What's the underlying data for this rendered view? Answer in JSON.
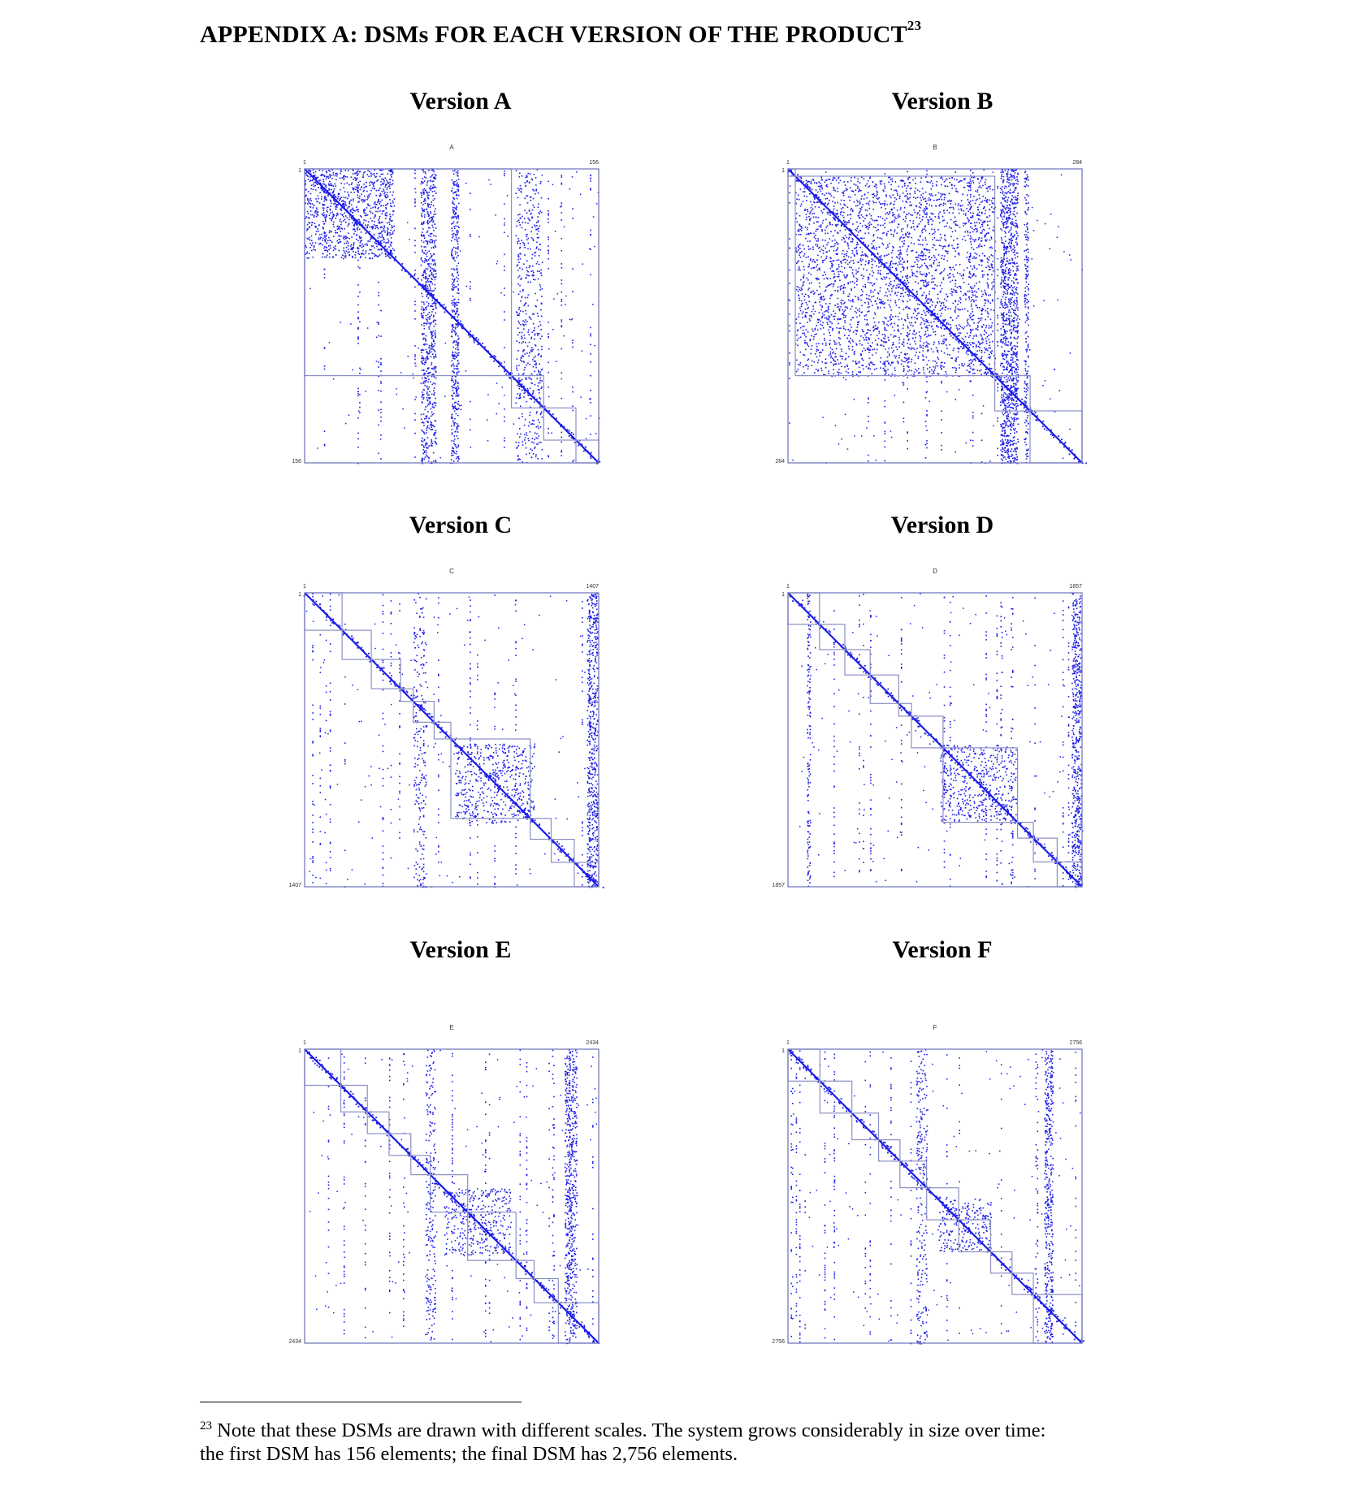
{
  "heading": {
    "text": "APPENDIX A:  DSMs FOR EACH VERSION OF THE PRODUCT",
    "footnote_ref": "23"
  },
  "panels": [
    {
      "title": "Version A",
      "letter": "A",
      "size": 156,
      "size_label": "156",
      "modules": [
        [
          1,
          110
        ],
        [
          110,
          127
        ],
        [
          127,
          144
        ],
        [
          144,
          156
        ]
      ],
      "dense_blocks": [
        [
          1,
          48,
          0.08
        ]
      ],
      "bands": [
        [
          62,
          70,
          0.3
        ],
        [
          78,
          82,
          0.35
        ],
        [
          112,
          126,
          0.12
        ]
      ]
    },
    {
      "title": "Version B",
      "letter": "B",
      "size": 284,
      "size_label": "284",
      "modules": [
        [
          1,
          8
        ],
        [
          8,
          200
        ],
        [
          200,
          234
        ],
        [
          234,
          284
        ]
      ],
      "dense_blocks": [
        [
          8,
          200,
          0.05
        ]
      ],
      "bands": [
        [
          205,
          222,
          0.4
        ],
        [
          228,
          232,
          0.3
        ]
      ]
    },
    {
      "title": "Version C",
      "letter": "C",
      "size": 1407,
      "size_label": "1407",
      "modules": [
        [
          1,
          180
        ],
        [
          180,
          320
        ],
        [
          320,
          460
        ],
        [
          460,
          520
        ],
        [
          520,
          620
        ],
        [
          620,
          700
        ],
        [
          700,
          1080
        ],
        [
          1080,
          1180
        ],
        [
          1180,
          1290
        ],
        [
          1290,
          1407
        ]
      ],
      "dense_blocks": [
        [
          720,
          1100,
          0.05
        ]
      ],
      "bands": [
        [
          1350,
          1400,
          0.35
        ],
        [
          520,
          580,
          0.1
        ]
      ]
    },
    {
      "title": "Version D",
      "letter": "D",
      "size": 1857,
      "size_label": "1857",
      "modules": [
        [
          1,
          200
        ],
        [
          200,
          360
        ],
        [
          360,
          520
        ],
        [
          520,
          700
        ],
        [
          700,
          780
        ],
        [
          780,
          980
        ],
        [
          980,
          1450
        ],
        [
          1450,
          1550
        ],
        [
          1550,
          1700
        ],
        [
          1700,
          1857
        ]
      ],
      "dense_blocks": [
        [
          960,
          1440,
          0.05
        ]
      ],
      "bands": [
        [
          1790,
          1850,
          0.35
        ],
        [
          120,
          140,
          0.3
        ]
      ]
    },
    {
      "title": "Version E",
      "letter": "E",
      "size": 2434,
      "size_label": "2434",
      "modules": [
        [
          1,
          300
        ],
        [
          300,
          520
        ],
        [
          520,
          700
        ],
        [
          700,
          880
        ],
        [
          880,
          1040
        ],
        [
          1040,
          1350
        ],
        [
          1350,
          1750
        ],
        [
          1750,
          1900
        ],
        [
          1900,
          2100
        ],
        [
          2100,
          2434
        ]
      ],
      "dense_blocks": [
        [
          1150,
          1700,
          0.05
        ]
      ],
      "bands": [
        [
          2150,
          2250,
          0.3
        ],
        [
          1000,
          1080,
          0.15
        ]
      ]
    },
    {
      "title": "Version F",
      "letter": "F",
      "size": 2756,
      "size_label": "2756",
      "modules": [
        [
          1,
          300
        ],
        [
          300,
          600
        ],
        [
          600,
          850
        ],
        [
          850,
          1050
        ],
        [
          1050,
          1300
        ],
        [
          1300,
          1600
        ],
        [
          1600,
          1900
        ],
        [
          1900,
          2100
        ],
        [
          2100,
          2300
        ],
        [
          2300,
          2756
        ]
      ],
      "dense_blocks": [
        [
          1400,
          1900,
          0.05
        ]
      ],
      "bands": [
        [
          2400,
          2480,
          0.3
        ],
        [
          1200,
          1300,
          0.15
        ]
      ]
    }
  ],
  "colors": {
    "dots": "#1c1ce8",
    "frame": "#6a70b8",
    "module": "#8a8fc4",
    "axis_text": "#333333"
  },
  "footnote": {
    "number": "23",
    "line1": " Note that these DSMs are drawn with different scales.  The system grows considerably in size over time:",
    "line2": "the first DSM has 156 elements; the final DSM has 2,756 elements."
  }
}
